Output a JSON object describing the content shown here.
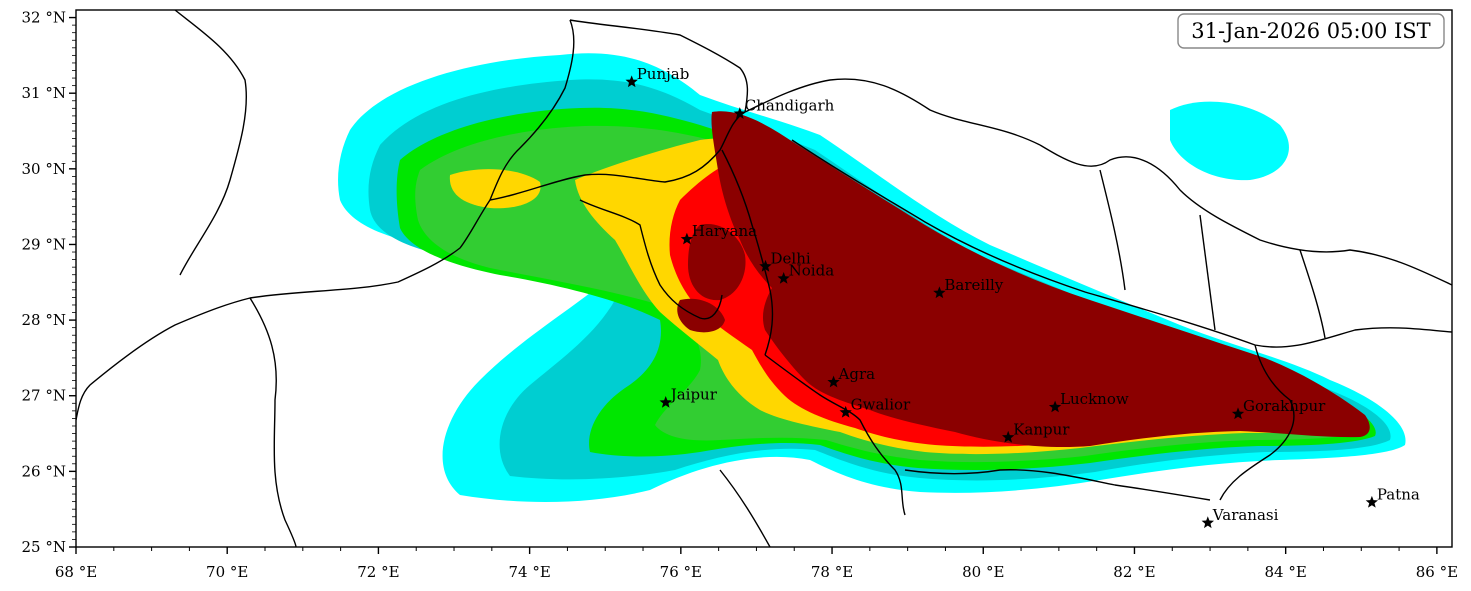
{
  "timestamp": "31-Jan-2026 05:00 IST",
  "map": {
    "lon_range": [
      68,
      86.2
    ],
    "lat_range": [
      25,
      32.1
    ],
    "x_ticks": [
      {
        "lon": 68,
        "label": "68 °E"
      },
      {
        "lon": 70,
        "label": "70 °E"
      },
      {
        "lon": 72,
        "label": "72 °E"
      },
      {
        "lon": 74,
        "label": "74 °E"
      },
      {
        "lon": 76,
        "label": "76 °E"
      },
      {
        "lon": 78,
        "label": "78 °E"
      },
      {
        "lon": 80,
        "label": "80 °E"
      },
      {
        "lon": 82,
        "label": "82 °E"
      },
      {
        "lon": 84,
        "label": "84 °E"
      },
      {
        "lon": 86,
        "label": "86 °E"
      }
    ],
    "y_ticks": [
      {
        "lat": 25,
        "label": "25 °N"
      },
      {
        "lat": 26,
        "label": "26 °N"
      },
      {
        "lat": 27,
        "label": "27 °N"
      },
      {
        "lat": 28,
        "label": "28 °N"
      },
      {
        "lat": 29,
        "label": "29 °N"
      },
      {
        "lat": 30,
        "label": "30 °N"
      },
      {
        "lat": 31,
        "label": "31 °N"
      },
      {
        "lat": 32,
        "label": "32 °N"
      }
    ],
    "cities": [
      {
        "name": "Punjab",
        "lon": 75.35,
        "lat": 31.15
      },
      {
        "name": "Chandigarh",
        "lon": 76.78,
        "lat": 30.73
      },
      {
        "name": "Haryana",
        "lon": 76.08,
        "lat": 29.07
      },
      {
        "name": "Delhi",
        "lon": 77.12,
        "lat": 28.71
      },
      {
        "name": "Noida",
        "lon": 77.36,
        "lat": 28.55
      },
      {
        "name": "Bareilly",
        "lon": 79.42,
        "lat": 28.36
      },
      {
        "name": "Agra",
        "lon": 78.02,
        "lat": 27.18
      },
      {
        "name": "Jaipur",
        "lon": 75.8,
        "lat": 26.91
      },
      {
        "name": "Gwalior",
        "lon": 78.18,
        "lat": 26.78
      },
      {
        "name": "Lucknow",
        "lon": 80.95,
        "lat": 26.85
      },
      {
        "name": "Gorakhpur",
        "lon": 83.37,
        "lat": 26.76
      },
      {
        "name": "Kanpur",
        "lon": 80.33,
        "lat": 26.45
      },
      {
        "name": "Varanasi",
        "lon": 82.97,
        "lat": 25.32
      },
      {
        "name": "Patna",
        "lon": 85.14,
        "lat": 25.59
      }
    ],
    "colors": {
      "cyan": "#00ffff",
      "teal": "#00ced1",
      "green": "#00e600",
      "lime": "#32cd32",
      "gold": "#ffd700",
      "red": "#ff0000",
      "maroon": "#8b0000"
    }
  }
}
